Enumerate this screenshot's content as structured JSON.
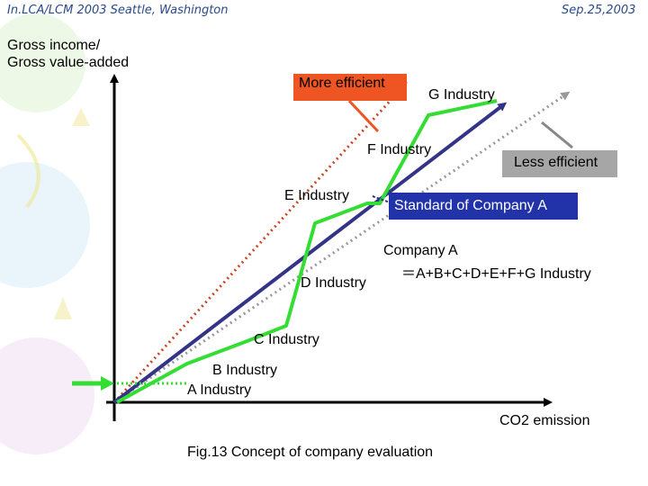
{
  "header": {
    "conference": "In.LCA/LCM 2003  Seattle, Washington",
    "date": "Sep.25,2003"
  },
  "axes": {
    "y_label_line1": "Gross income/",
    "y_label_line2": "Gross value-added",
    "x_label": "CO2 emission"
  },
  "callouts": {
    "more_efficient": "More efficient",
    "less_efficient": "Less efficient",
    "standard": "Standard of Company A"
  },
  "industries": {
    "a": "A Industry",
    "b": "B Industry",
    "c": "C Industry",
    "d": "D Industry",
    "e": "E Industry",
    "f": "F Industry",
    "g": "G Industry"
  },
  "company": {
    "line1": "Company A",
    "line2": "＝A+B+C+D+E+F+G Industry"
  },
  "caption": "Fig.13 Concept of company evaluation",
  "colors": {
    "axis": "#000000",
    "green_path": "#33dd33",
    "standard_line": "#333388",
    "more_efficient": "#ee5522",
    "more_efficient_dots": "#cc4422",
    "less_efficient": "#999999",
    "standard_box": "#2233aa",
    "header_text": "#2a4a8a"
  }
}
